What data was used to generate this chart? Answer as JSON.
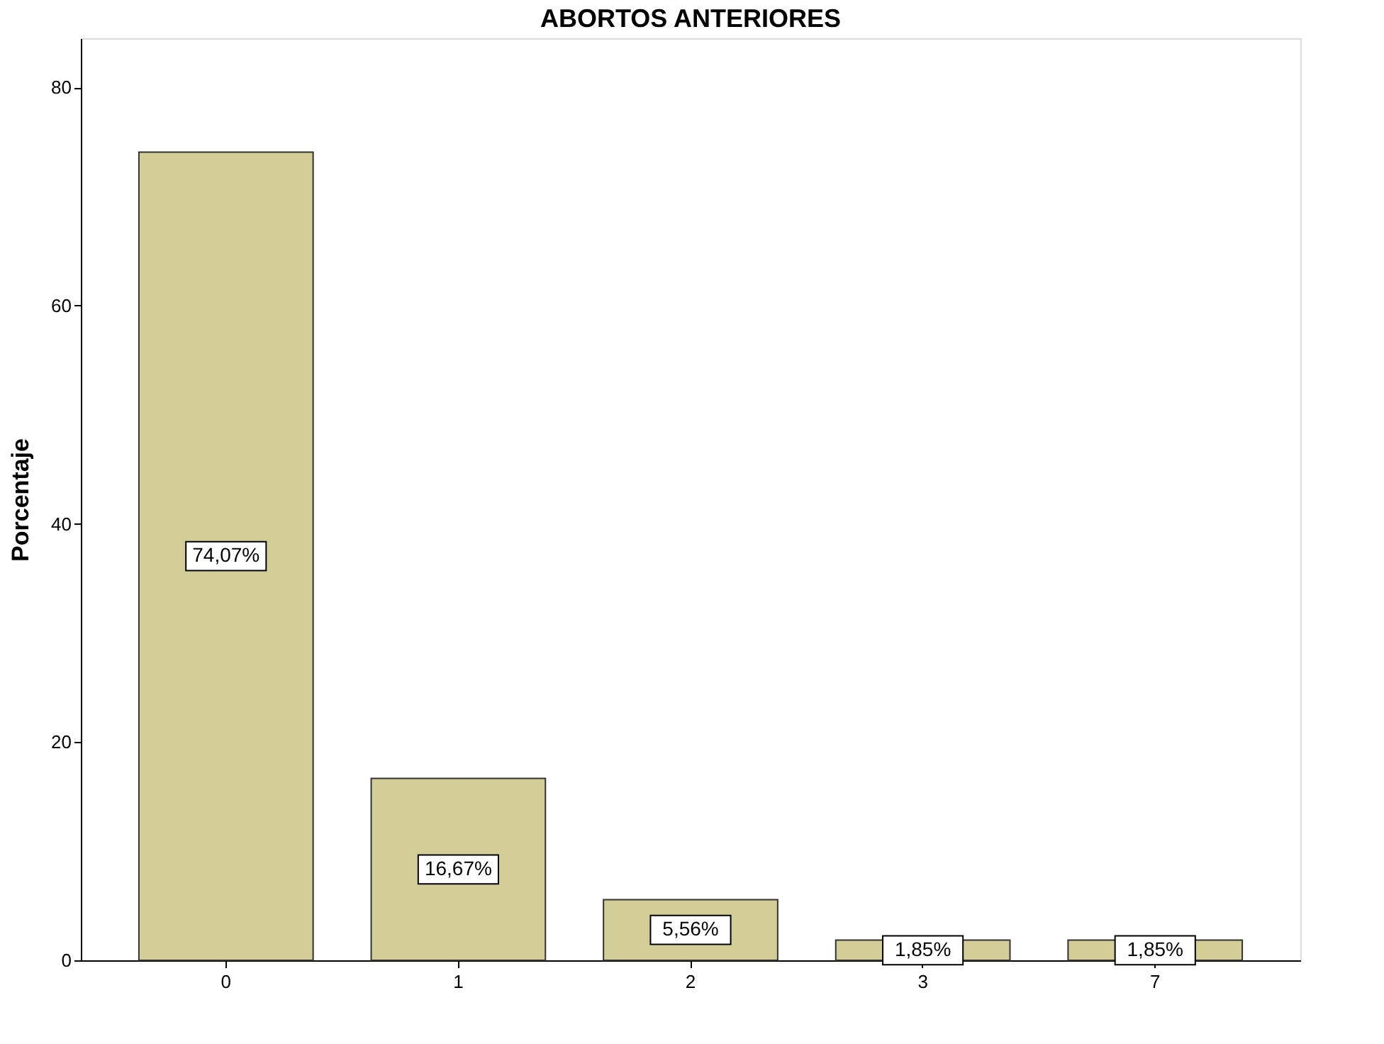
{
  "chart_data": {
    "type": "bar",
    "title": "ABORTOS ANTERIORES",
    "ylabel": "Porcentaje",
    "categories": [
      "0",
      "1",
      "2",
      "3",
      "7"
    ],
    "values": [
      74.07,
      16.67,
      5.56,
      1.85,
      1.85
    ],
    "value_labels": [
      "74,07%",
      "16,67%",
      "5,56%",
      "1,85%",
      "1,85%"
    ],
    "color": "#d3ce97",
    "ylim": [
      0,
      84.5
    ],
    "yticks": [
      0,
      20,
      40,
      60,
      80
    ],
    "grid": false
  }
}
